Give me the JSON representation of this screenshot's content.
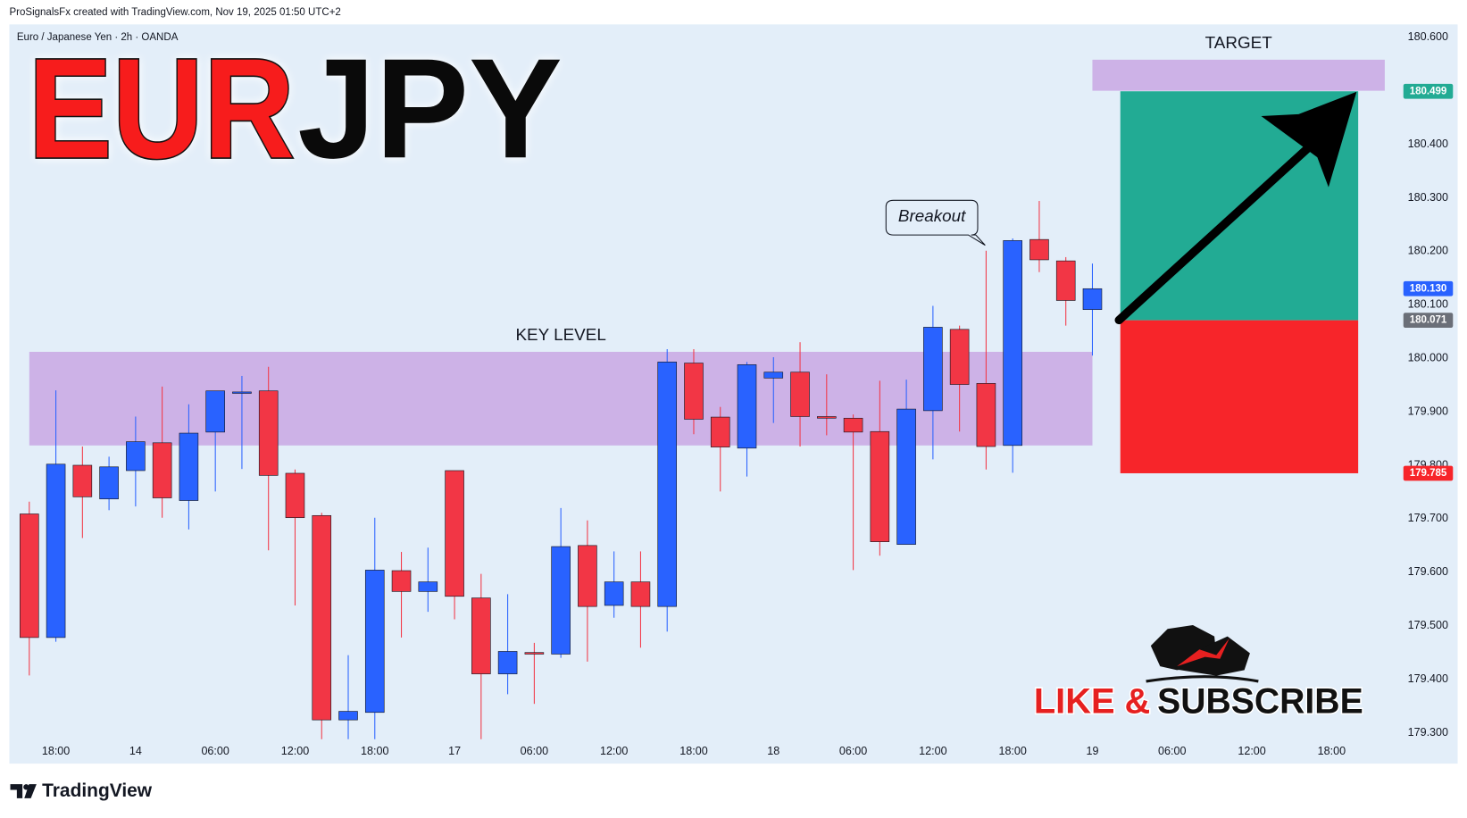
{
  "header": {
    "attribution": "ProSignalsFx created with TradingView.com, Nov 19, 2025 01:50 UTC+2"
  },
  "chart_data": {
    "type": "candlestick",
    "symbol": "Euro / Japanese Yen · 2h · OANDA",
    "title_parts": [
      "EUR",
      "JPY"
    ],
    "categories": [
      null,
      null,
      null,
      null,
      null,
      null,
      null,
      null,
      null,
      null,
      null,
      null,
      null,
      null,
      null,
      null,
      null,
      null,
      null,
      null,
      null,
      null,
      null,
      null,
      null,
      null,
      null,
      null,
      null,
      null,
      null,
      null,
      null,
      null,
      null,
      null,
      null,
      null,
      null,
      null,
      null
    ],
    "open": [
      179.709,
      179.478,
      179.8,
      179.737,
      179.79,
      179.842,
      179.734,
      179.862,
      179.937,
      179.939,
      179.785,
      179.706,
      179.324,
      179.338,
      179.603,
      179.564,
      179.79,
      179.552,
      179.41,
      179.45,
      179.447,
      179.65,
      179.538,
      179.582,
      179.536,
      179.991,
      179.89,
      179.832,
      179.963,
      179.974,
      179.891,
      179.888,
      179.863,
      179.652,
      179.902,
      180.054,
      179.953,
      179.837,
      180.222,
      180.182,
      180.091
    ],
    "high": [
      179.732,
      179.94,
      179.835,
      179.816,
      179.891,
      179.947,
      179.914,
      179.939,
      179.967,
      179.984,
      179.792,
      179.711,
      179.445,
      179.702,
      179.638,
      179.646,
      179.79,
      179.597,
      179.559,
      179.468,
      179.72,
      179.697,
      179.639,
      179.639,
      180.017,
      180.017,
      179.909,
      179.993,
      180.002,
      180.03,
      179.97,
      179.895,
      179.958,
      179.96,
      180.098,
      180.061,
      180.201,
      180.224,
      180.294,
      180.189,
      180.177
    ],
    "low": [
      179.407,
      179.47,
      179.664,
      179.716,
      179.723,
      179.702,
      179.68,
      179.751,
      179.793,
      179.641,
      179.538,
      179.288,
      179.288,
      179.288,
      179.478,
      179.526,
      179.512,
      179.288,
      179.372,
      179.354,
      179.44,
      179.433,
      179.515,
      179.459,
      179.489,
      179.858,
      179.751,
      179.779,
      179.879,
      179.835,
      179.856,
      179.604,
      179.631,
      179.652,
      179.811,
      179.863,
      179.792,
      179.786,
      180.161,
      180.061,
      180.005
    ],
    "close": [
      179.478,
      179.802,
      179.741,
      179.797,
      179.844,
      179.739,
      179.86,
      179.939,
      179.937,
      179.781,
      179.702,
      179.324,
      179.34,
      179.604,
      179.564,
      179.582,
      179.555,
      179.41,
      179.452,
      179.447,
      179.648,
      179.536,
      179.582,
      179.536,
      179.993,
      179.886,
      179.834,
      179.988,
      179.974,
      179.891,
      179.888,
      179.862,
      179.657,
      179.905,
      180.058,
      179.951,
      179.835,
      180.22,
      180.184,
      180.108,
      180.13
    ],
    "up_color": "#2962ff",
    "down_color": "#f23645",
    "xlim": [
      -0.75,
      51.7
    ],
    "xticks": [
      {
        "value": 1,
        "label": "18:00"
      },
      {
        "value": 4,
        "label": "14"
      },
      {
        "value": 7,
        "label": "06:00"
      },
      {
        "value": 10,
        "label": "12:00"
      },
      {
        "value": 13,
        "label": "18:00"
      },
      {
        "value": 16,
        "label": "17"
      },
      {
        "value": 19,
        "label": "06:00"
      },
      {
        "value": 22,
        "label": "12:00"
      },
      {
        "value": 25,
        "label": "18:00"
      },
      {
        "value": 28,
        "label": "18"
      },
      {
        "value": 31,
        "label": "06:00"
      },
      {
        "value": 34,
        "label": "12:00"
      },
      {
        "value": 37,
        "label": "18:00"
      },
      {
        "value": 40,
        "label": "19"
      },
      {
        "value": 43,
        "label": "06:00"
      },
      {
        "value": 46,
        "label": "12:00"
      },
      {
        "value": 49,
        "label": "18:00"
      }
    ],
    "ylim": [
      179.244,
      180.624
    ],
    "yticks": [
      {
        "value": 180.6,
        "label": "180.600"
      },
      {
        "value": 180.5,
        "label": "180.500"
      },
      {
        "value": 180.4,
        "label": "180.400"
      },
      {
        "value": 180.3,
        "label": "180.300"
      },
      {
        "value": 180.2,
        "label": "180.200"
      },
      {
        "value": 180.1,
        "label": "180.100"
      },
      {
        "value": 180.0,
        "label": "180.000"
      },
      {
        "value": 179.9,
        "label": "179.900"
      },
      {
        "value": 179.8,
        "label": "179.800"
      },
      {
        "value": 179.7,
        "label": "179.700"
      },
      {
        "value": 179.6,
        "label": "179.600"
      },
      {
        "value": 179.5,
        "label": "179.500"
      },
      {
        "value": 179.4,
        "label": "179.400"
      },
      {
        "value": 179.3,
        "label": "179.300"
      }
    ],
    "price_labels": [
      {
        "value": 180.499,
        "label": "180.499",
        "color": "#22ab94"
      },
      {
        "value": 180.13,
        "label": "180.130",
        "color": "#2962ff"
      },
      {
        "value": 180.071,
        "label": "180.071",
        "color": "#6b6f78"
      },
      {
        "value": 179.785,
        "label": "179.785",
        "color": "#f7252a"
      }
    ],
    "zones": [
      {
        "label": "KEY LEVEL",
        "range": [
          179.837,
          180.012
        ],
        "xrange": [
          0,
          40
        ]
      },
      {
        "label": "TARGET",
        "range": [
          180.5,
          180.558
        ],
        "xrange": [
          40,
          51
        ]
      }
    ],
    "annotation": "Breakout"
  },
  "promo": {
    "like": "LIKE &",
    "subscribe": "SUBSCRIBE"
  },
  "footer": {
    "brand": "TradingView"
  }
}
